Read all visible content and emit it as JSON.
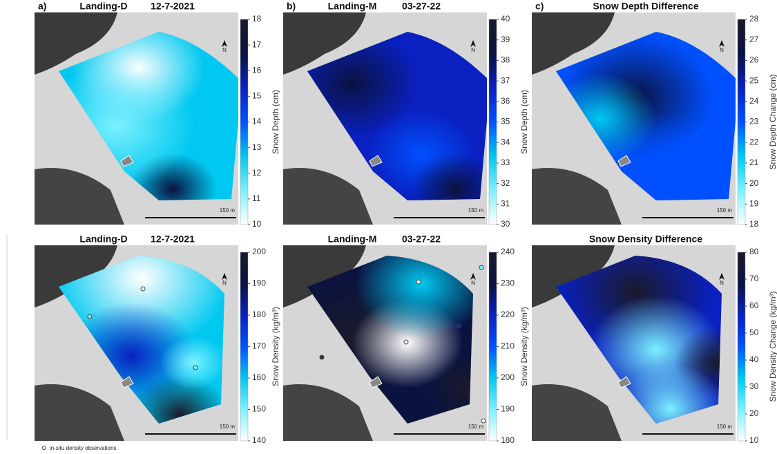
{
  "colormap": [
    "#ffffff",
    "#7df0ff",
    "#00c8f0",
    "#0050ff",
    "#0a20c0",
    "#0a1240",
    "#1a1a2a"
  ],
  "panels": [
    {
      "letter": "a)",
      "title": "Landing-D",
      "date": "12-7-2021",
      "colorbar": {
        "label": "Snow Depth  (cm)",
        "lim": [
          10,
          18
        ],
        "ticks": [
          10,
          11,
          12,
          13,
          14,
          15,
          16,
          17,
          18
        ]
      },
      "scale": "150 m",
      "north": "N"
    },
    {
      "letter": "b)",
      "title": "Landing-M",
      "date": "03-27-22",
      "colorbar": {
        "label": "Snow Depth  (cm)",
        "lim": [
          30,
          40
        ],
        "ticks": [
          30,
          31,
          32,
          33,
          34,
          35,
          36,
          37,
          38,
          39,
          40
        ]
      },
      "scale": "150 m",
      "north": "N"
    },
    {
      "letter": "c)",
      "title": "Snow Depth Difference",
      "colorbar": {
        "label": "Snow Depth Change (cm)",
        "lim": [
          18,
          28
        ],
        "ticks": [
          18,
          19,
          20,
          21,
          22,
          23,
          24,
          25,
          26,
          27,
          28
        ]
      },
      "scale": "150 m",
      "north": "N"
    },
    {
      "title": "Landing-D",
      "date": "12-7-2021",
      "colorbar": {
        "label": "Snow Density (kg/m³)",
        "lim": [
          140,
          200
        ],
        "ticks": [
          140,
          150,
          160,
          170,
          180,
          190,
          200
        ]
      },
      "scale": "150 m",
      "north": "N"
    },
    {
      "title": "Landing-M",
      "date": "03-27-22",
      "colorbar": {
        "label": "Snow Density  (kg/m³)",
        "lim": [
          180,
          240
        ],
        "ticks": [
          180,
          190,
          200,
          210,
          220,
          230,
          240
        ]
      },
      "scale": "150 m",
      "north": "N"
    },
    {
      "title": "Snow Density Difference",
      "colorbar": {
        "label": "Snow Density Change (kg/m³)",
        "lim": [
          10,
          80
        ],
        "ticks": [
          10,
          20,
          30,
          40,
          50,
          60,
          70,
          80
        ]
      },
      "scale": "150 m",
      "north": "N"
    }
  ],
  "legend": "in-situ density observations"
}
